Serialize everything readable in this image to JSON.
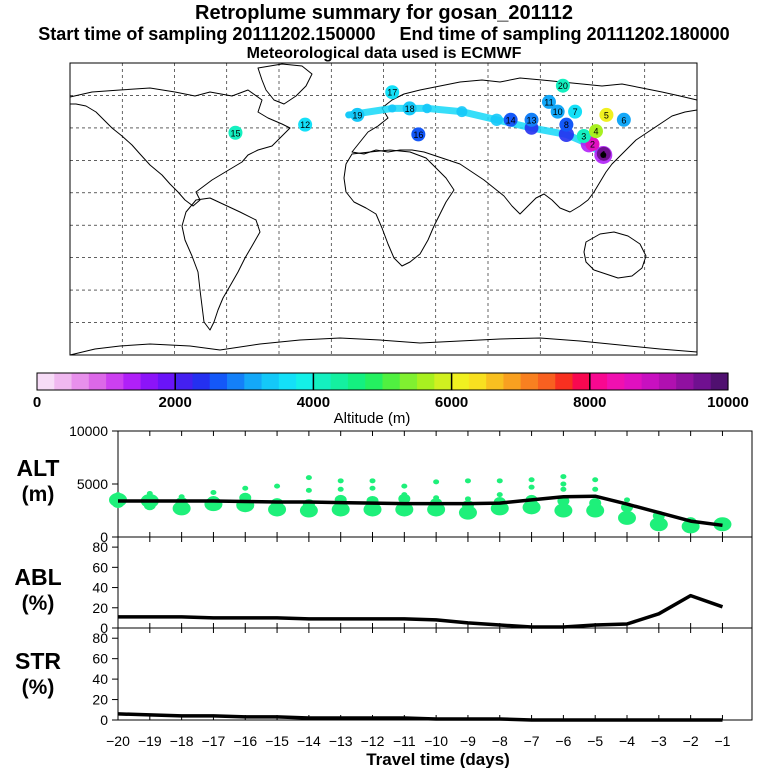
{
  "header": {
    "title": "Retroplume summary for gosan_201112",
    "start_label": "Start time of sampling 20111202.150000",
    "end_label": "End time of sampling 20111202.180000",
    "met_label": "Meteorological data used is ECMWF"
  },
  "colors": {
    "scale": [
      "#f7dcf7",
      "#f0b8f0",
      "#e890ec",
      "#dc68e8",
      "#cc40f0",
      "#b020f8",
      "#8c14f8",
      "#6a14f8",
      "#4420f0",
      "#2430f0",
      "#1458f8",
      "#1480f8",
      "#14a8f8",
      "#14c8f8",
      "#14e0f8",
      "#14f0e8",
      "#14f0c0",
      "#14f0a0",
      "#14f080",
      "#24f060",
      "#50f040",
      "#80f030",
      "#a8f020",
      "#d0f020",
      "#f0f020",
      "#f8e020",
      "#f8c020",
      "#f8a020",
      "#f88020",
      "#f86020",
      "#f83020",
      "#f80850",
      "#f80890",
      "#f010b0",
      "#e010c0",
      "#c810c0",
      "#b010b0",
      "#9010a0",
      "#701090",
      "#501070"
    ],
    "altitude_marker": "#1ef07a",
    "line": "#000000"
  },
  "chart_data": [
    {
      "type": "map",
      "name": "retroplume-map",
      "colorbar": {
        "ticks": [
          "0",
          "2000",
          "4000",
          "6000",
          "8000",
          "10000"
        ],
        "label": "Altitude (m)",
        "range": [
          0,
          10000
        ]
      },
      "source_lon": 126.2,
      "source_lat": 33.3,
      "plume_path": [
        [
          126.2,
          33.3
        ],
        [
          118,
          40
        ],
        [
          105,
          46
        ],
        [
          85,
          50
        ],
        [
          65,
          55
        ],
        [
          45,
          60
        ],
        [
          25,
          62
        ],
        [
          5,
          62
        ],
        [
          -20,
          58
        ]
      ],
      "clusters": [
        {
          "label": "1",
          "lon": 126.5,
          "lat": 34,
          "alt": 9500
        },
        {
          "label": "2",
          "lon": 120,
          "lat": 40,
          "alt": 8500
        },
        {
          "label": "3",
          "lon": 115,
          "lat": 45,
          "alt": 4000
        },
        {
          "label": "4",
          "lon": 122,
          "lat": 48,
          "alt": 5500
        },
        {
          "label": "5",
          "lon": 128,
          "lat": 58,
          "alt": 6000
        },
        {
          "label": "6",
          "lon": 138,
          "lat": 55,
          "alt": 3000
        },
        {
          "label": "7",
          "lon": 110,
          "lat": 60,
          "alt": 3500
        },
        {
          "label": "8",
          "lon": 105,
          "lat": 52,
          "alt": 2500
        },
        {
          "label": "10",
          "lon": 100,
          "lat": 60,
          "alt": 3200
        },
        {
          "label": "11",
          "lon": 95,
          "lat": 66,
          "alt": 3000
        },
        {
          "label": "12",
          "lon": -45,
          "lat": 52,
          "alt": 3600
        },
        {
          "label": "13",
          "lon": 85,
          "lat": 55,
          "alt": 2800
        },
        {
          "label": "14",
          "lon": 73,
          "lat": 55,
          "alt": 2600
        },
        {
          "label": "15",
          "lon": -85,
          "lat": 47,
          "alt": 4100
        },
        {
          "label": "16",
          "lon": 20,
          "lat": 46,
          "alt": 2700
        },
        {
          "label": "17",
          "lon": 5,
          "lat": 72,
          "alt": 3700
        },
        {
          "label": "18",
          "lon": 15,
          "lat": 62,
          "alt": 3300
        },
        {
          "label": "19",
          "lon": -15,
          "lat": 58,
          "alt": 3300
        },
        {
          "label": "20",
          "lon": 103,
          "lat": 76,
          "alt": 4100
        }
      ]
    },
    {
      "type": "scatter",
      "name": "altitude-panel",
      "ylabel": "ALT",
      "yunit": "(m)",
      "ylim": [
        0,
        10000
      ],
      "yticks": [
        0,
        5000,
        10000
      ],
      "x": [
        -20,
        -19,
        -18,
        -17,
        -16,
        -15,
        -14,
        -13,
        -12,
        -11,
        -10,
        -9,
        -8,
        -7,
        -6,
        -5,
        -4,
        -3,
        -2,
        -1
      ],
      "mean_altitude": [
        3400,
        3400,
        3400,
        3400,
        3350,
        3300,
        3300,
        3250,
        3200,
        3150,
        3150,
        3150,
        3200,
        3500,
        3800,
        3850,
        3100,
        2300,
        1500,
        1100
      ],
      "clusters": [
        [
          3500,
          3200,
          4000
        ],
        [
          3400,
          3000,
          4100
        ],
        [
          2700,
          3300,
          3800
        ],
        [
          3100,
          3400,
          4200
        ],
        [
          3000,
          3700,
          4600
        ],
        [
          2600,
          3200,
          4800
        ],
        [
          2500,
          3100,
          4400,
          5600
        ],
        [
          2600,
          3500,
          4500,
          5300
        ],
        [
          2600,
          3400,
          4600,
          5300
        ],
        [
          2600,
          3600,
          4000,
          4800
        ],
        [
          2600,
          3200,
          3700,
          5200
        ],
        [
          2300,
          3000,
          3600,
          5300
        ],
        [
          2700,
          3300,
          4000,
          5300
        ],
        [
          2800,
          3500,
          4700,
          5400
        ],
        [
          2500,
          3400,
          4500,
          5000,
          5700
        ],
        [
          2500,
          3200,
          4500,
          5400
        ],
        [
          1800,
          2800,
          3500
        ],
        [
          1200,
          2000
        ],
        [
          1000,
          1400
        ],
        [
          1200,
          1100
        ]
      ],
      "marker_shape": "ellipse"
    },
    {
      "type": "line",
      "name": "abl-panel",
      "ylabel": "ABL",
      "yunit": "(%)",
      "ylim": [
        0,
        90
      ],
      "yticks": [
        0,
        20,
        40,
        60,
        80
      ],
      "x": [
        -20,
        -19,
        -18,
        -17,
        -16,
        -15,
        -14,
        -13,
        -12,
        -11,
        -10,
        -9,
        -8,
        -7,
        -6,
        -5,
        -4,
        -3,
        -2,
        -1
      ],
      "values": [
        11,
        11,
        11,
        10,
        10,
        10,
        9,
        9,
        9,
        9,
        8,
        5,
        3,
        1,
        1,
        3,
        4,
        14,
        32,
        21
      ]
    },
    {
      "type": "line",
      "name": "str-panel",
      "ylabel": "STR",
      "yunit": "(%)",
      "ylim": [
        0,
        90
      ],
      "yticks": [
        0,
        20,
        40,
        60,
        80
      ],
      "x": [
        -20,
        -19,
        -18,
        -17,
        -16,
        -15,
        -14,
        -13,
        -12,
        -11,
        -10,
        -9,
        -8,
        -7,
        -6,
        -5,
        -4,
        -3,
        -2,
        -1
      ],
      "values": [
        6,
        5,
        4,
        4,
        3,
        3,
        2,
        2,
        2,
        2,
        1,
        1,
        1,
        0,
        0,
        0,
        0,
        0,
        0,
        0
      ],
      "xlabel": "Travel time (days)",
      "xticks": [
        -20,
        -19,
        -18,
        -17,
        -16,
        -15,
        -14,
        -13,
        -12,
        -11,
        -10,
        -9,
        -8,
        -7,
        -6,
        -5,
        -4,
        -3,
        -2,
        -1
      ]
    }
  ]
}
